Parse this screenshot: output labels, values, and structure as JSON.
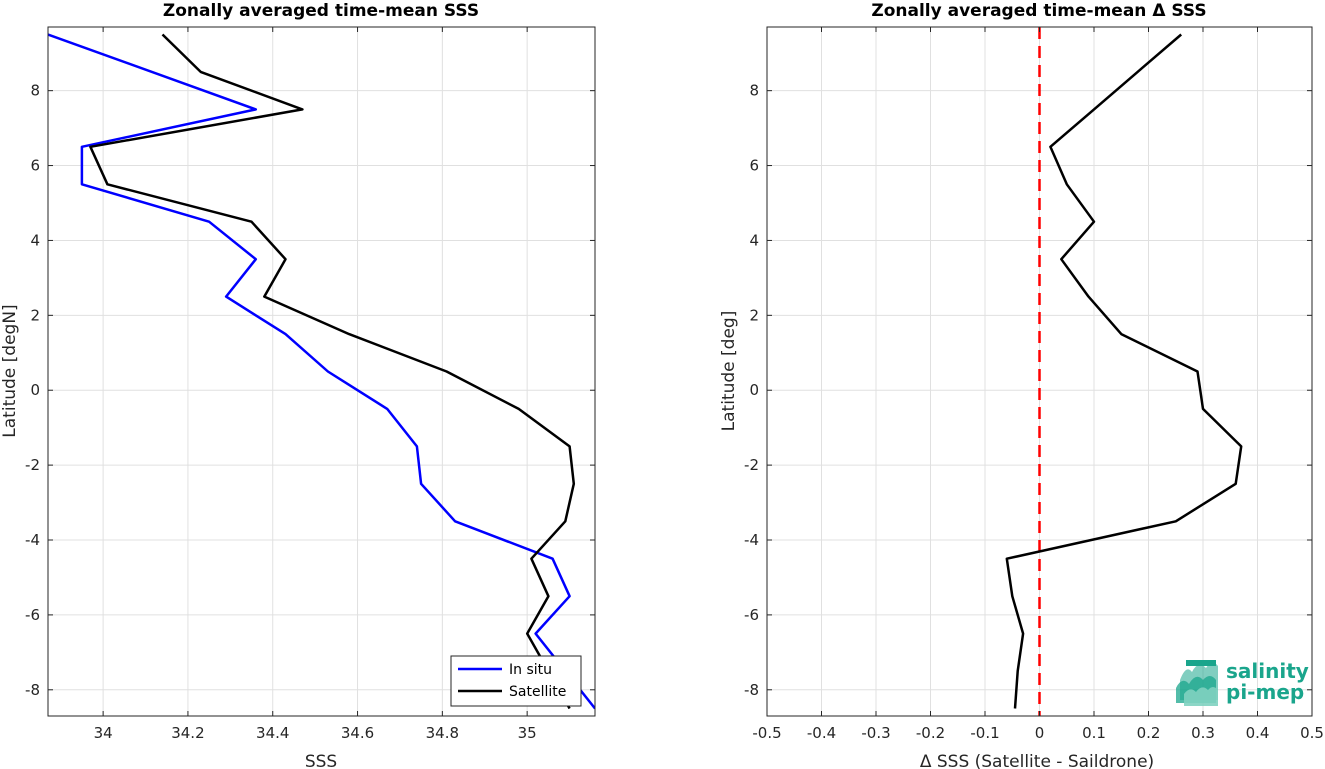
{
  "chart_data": [
    {
      "type": "line",
      "title": "Zonally averaged time-mean SSS",
      "xlabel": "SSS",
      "ylabel": "Latitude [degN]",
      "xlim": [
        33.87,
        35.16
      ],
      "ylim": [
        -8.7,
        9.7
      ],
      "xticks": [
        34,
        34.2,
        34.4,
        34.6,
        34.8,
        35
      ],
      "xtick_labels": [
        "34",
        "34.2",
        "34.4",
        "34.6",
        "34.8",
        "35"
      ],
      "yticks": [
        -8,
        -6,
        -4,
        -2,
        0,
        2,
        4,
        6,
        8
      ],
      "ytick_labels": [
        "-8",
        "-6",
        "-4",
        "-2",
        "0",
        "2",
        "4",
        "6",
        "8"
      ],
      "grid": true,
      "legend_position": "bottom-right",
      "series": [
        {
          "name": "In situ",
          "color": "#0000ff",
          "x": [
            33.87,
            34.36,
            33.95,
            33.95,
            34.25,
            34.36,
            34.29,
            34.43,
            34.53,
            34.67,
            34.74,
            34.75,
            34.83,
            35.06,
            35.1,
            35.02,
            35.16
          ],
          "y": [
            9.5,
            7.5,
            6.5,
            5.5,
            4.5,
            3.5,
            2.5,
            1.5,
            0.5,
            -0.5,
            -1.5,
            -2.5,
            -3.5,
            -4.5,
            -5.5,
            -6.5,
            -8.5
          ]
        },
        {
          "name": "Satellite",
          "color": "#000000",
          "x": [
            34.14,
            34.23,
            34.47,
            33.97,
            34.01,
            34.35,
            34.43,
            34.38,
            34.58,
            34.81,
            34.98,
            35.1,
            35.11,
            35.09,
            35.01,
            35.05,
            35.0,
            35.1
          ],
          "y": [
            9.5,
            8.5,
            7.5,
            6.5,
            5.5,
            4.5,
            3.5,
            2.5,
            1.5,
            0.5,
            -0.5,
            -1.5,
            -2.5,
            -3.5,
            -4.5,
            -5.5,
            -6.5,
            -8.5
          ]
        }
      ]
    },
    {
      "type": "line",
      "title": "Zonally averaged time-mean Δ SSS",
      "xlabel": "Δ SSS (Satellite - Saildrone)",
      "ylabel": "Latitude [deg]",
      "xlim": [
        -0.5,
        0.5
      ],
      "ylim": [
        -8.7,
        9.7
      ],
      "xticks": [
        -0.5,
        -0.4,
        -0.3,
        -0.2,
        -0.1,
        0,
        0.1,
        0.2,
        0.3,
        0.4,
        0.5
      ],
      "xtick_labels": [
        "-0.5",
        "-0.4",
        "-0.3",
        "-0.2",
        "-0.1",
        "0",
        "0.1",
        "0.2",
        "0.3",
        "0.4",
        "0.5"
      ],
      "yticks": [
        -8,
        -6,
        -4,
        -2,
        0,
        2,
        4,
        6,
        8
      ],
      "ytick_labels": [
        "-8",
        "-6",
        "-4",
        "-2",
        "0",
        "2",
        "4",
        "6",
        "8"
      ],
      "grid": true,
      "reference_line": {
        "x": 0,
        "color": "#ff0000",
        "style": "dashed"
      },
      "series": [
        {
          "color": "#000000",
          "x": [
            0.26,
            0.18,
            0.1,
            0.02,
            0.05,
            0.1,
            0.04,
            0.09,
            0.15,
            0.29,
            0.3,
            0.37,
            0.36,
            0.25,
            -0.06,
            -0.05,
            -0.03,
            -0.04,
            -0.045
          ],
          "y": [
            9.5,
            8.5,
            7.5,
            6.5,
            5.5,
            4.5,
            3.5,
            2.5,
            1.5,
            0.5,
            -0.5,
            -1.5,
            -2.5,
            -3.5,
            -4.5,
            -5.5,
            -6.5,
            -7.5,
            -8.5
          ]
        }
      ]
    }
  ],
  "logo": {
    "line1": "salinity",
    "line2": "pi-mep",
    "color": "#1aa58c"
  }
}
